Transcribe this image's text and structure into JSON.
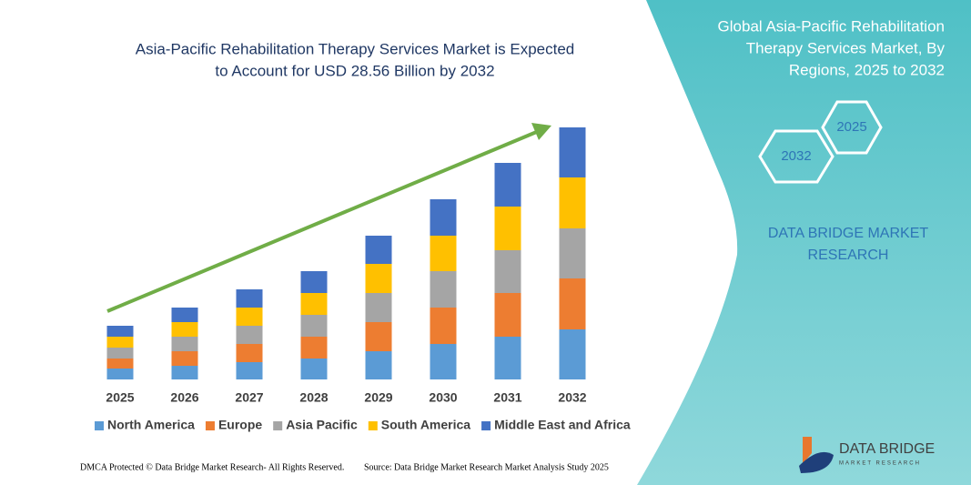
{
  "chart_data": {
    "type": "stacked-bar",
    "title": [
      "Asia-Pacific Rehabilitation Therapy Services Market is Expected",
      "to Account for USD 28.56 Billion by 2032"
    ],
    "categories": [
      "2025",
      "2026",
      "2027",
      "2028",
      "2029",
      "2030",
      "2031",
      "2032"
    ],
    "series": [
      {
        "name": "North America",
        "color": "#5b9bd5",
        "values": [
          12,
          15,
          19,
          23,
          31,
          39,
          47,
          55
        ]
      },
      {
        "name": "Europe",
        "color": "#ed7d31",
        "values": [
          11,
          16,
          20,
          24,
          32,
          40,
          48,
          56
        ]
      },
      {
        "name": "Asia Pacific",
        "color": "#a5a5a5",
        "values": [
          12,
          16,
          20,
          24,
          32,
          40,
          47,
          55
        ]
      },
      {
        "name": "South America",
        "color": "#ffc000",
        "values": [
          12,
          16,
          20,
          24,
          32,
          39,
          48,
          56
        ]
      },
      {
        "name": "Middle East and Africa",
        "color": "#4472c4",
        "values": [
          12,
          16,
          20,
          24,
          31,
          40,
          48,
          55
        ]
      }
    ],
    "ylim": [
      0,
      280
    ]
  },
  "panel": {
    "title": [
      "Global Asia-Pacific Rehabilitation",
      "Therapy Services Market, By",
      "Regions, 2025 to 2032"
    ],
    "hexagons": [
      "2025",
      "2032"
    ],
    "brand": [
      "DATA BRIDGE MARKET",
      "RESEARCH"
    ]
  },
  "logo": {
    "name": "DATA BRIDGE",
    "tagline": "MARKET RESEARCH"
  },
  "footer": {
    "left": "DMCA Protected © Data Bridge Market Research- All Rights Reserved.",
    "right": "Source: Data Bridge Market Research Market Analysis Study 2025"
  }
}
